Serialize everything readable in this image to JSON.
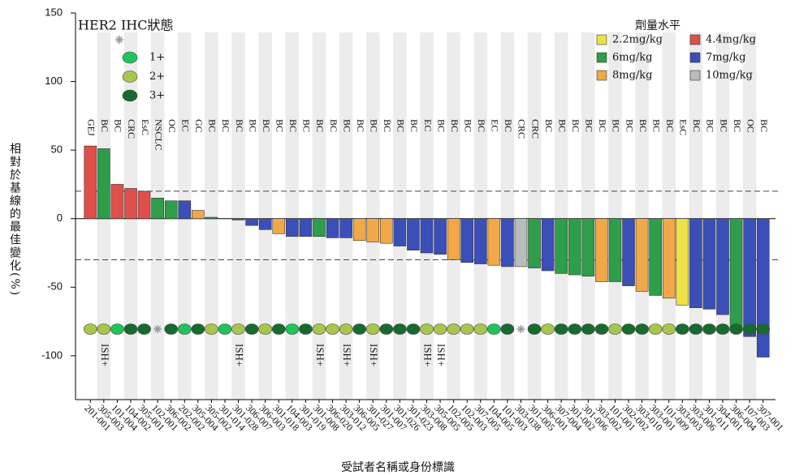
{
  "chart_data": {
    "type": "bar",
    "y_label": "相對於基線的最佳變化(%)",
    "x_label": "受試者名稱或身份標識",
    "ylim": [
      -132,
      150
    ],
    "yticks": [
      -100,
      -50,
      0,
      50,
      100,
      150
    ],
    "reference_lines": [
      20,
      -30
    ],
    "categories": [
      "201-001",
      "305-003",
      "101-004",
      "104-002",
      "305-001",
      "102-001",
      "306-002",
      "202-002",
      "305-004",
      "305-002",
      "301-014",
      "301-028",
      "306-007",
      "306-003",
      "301-018",
      "104-003",
      "301-019",
      "301-008",
      "306-020",
      "303-012",
      "306-005",
      "301-027",
      "301-007",
      "301-026",
      "301-023",
      "303-008",
      "305-005",
      "102-005",
      "102-003",
      "307-005",
      "104-005",
      "101-003",
      "303-038",
      "301-005",
      "306-001",
      "307-004",
      "301-002",
      "301-006",
      "303-002",
      "101-001",
      "302-002",
      "303-010",
      "303-001",
      "101-009",
      "303-003",
      "303-006",
      "301-011",
      "304-001",
      "306-004",
      "107-003",
      "307-001"
    ],
    "values": [
      53,
      51,
      25,
      22,
      20,
      15,
      13,
      13,
      6,
      1,
      0,
      -1,
      -5,
      -8,
      -11,
      -13,
      -13,
      -13,
      -14,
      -14,
      -16,
      -17,
      -18,
      -20,
      -23,
      -25,
      -26,
      -30,
      -32,
      -33,
      -34,
      -35,
      -35,
      -36,
      -38,
      -40,
      -41,
      -42,
      -46,
      -46,
      -49,
      -53,
      -56,
      -58,
      -63,
      -65,
      -66,
      -70,
      -80,
      -86,
      -101
    ],
    "tumor_types": [
      "GEJ",
      "BC",
      "BC",
      "CRC",
      "EsC",
      "NSCLC",
      "OC",
      "EC",
      "GC",
      "BC",
      "BC",
      "BC",
      "BC",
      "BC",
      "BC",
      "BC",
      "BC",
      "BC",
      "BC",
      "BC",
      "BC",
      "BC",
      "BC",
      "BC",
      "BC",
      "EC",
      "BC",
      "BC",
      "BC",
      "BC",
      "EC",
      "BC",
      "CRC",
      "CRC",
      "BC",
      "BC",
      "BC",
      "BC",
      "BC",
      "BC",
      "BC",
      "BC",
      "BC",
      "BC",
      "EsC",
      "BC",
      "BC",
      "BC",
      "BC",
      "OC",
      "BC"
    ],
    "dose": [
      "4.4mg/kg",
      "6mg/kg",
      "4.4mg/kg",
      "4.4mg/kg",
      "4.4mg/kg",
      "6mg/kg",
      "6mg/kg",
      "7mg/kg",
      "8mg/kg",
      "6mg/kg",
      "6mg/kg",
      "7mg/kg",
      "7mg/kg",
      "7mg/kg",
      "8mg/kg",
      "7mg/kg",
      "7mg/kg",
      "6mg/kg",
      "7mg/kg",
      "7mg/kg",
      "8mg/kg",
      "8mg/kg",
      "8mg/kg",
      "7mg/kg",
      "7mg/kg",
      "7mg/kg",
      "7mg/kg",
      "8mg/kg",
      "7mg/kg",
      "7mg/kg",
      "8mg/kg",
      "7mg/kg",
      "10mg/kg",
      "6mg/kg",
      "7mg/kg",
      "6mg/kg",
      "6mg/kg",
      "6mg/kg",
      "8mg/kg",
      "6mg/kg",
      "7mg/kg",
      "8mg/kg",
      "6mg/kg",
      "8mg/kg",
      "2.2mg/kg",
      "7mg/kg",
      "7mg/kg",
      "7mg/kg",
      "6mg/kg",
      "7mg/kg",
      "7mg/kg"
    ],
    "ihc": [
      "2+",
      "2+",
      "1+",
      "3+",
      "3+",
      null,
      "3+",
      "1+",
      "3+",
      "2+",
      "1+",
      "2+",
      "3+",
      "2+",
      "3+",
      "1+",
      "3+",
      "2+",
      "2+",
      "2+",
      "3+",
      "2+",
      "3+",
      "3+",
      "3+",
      "2+",
      "2+",
      "2+",
      "2+",
      "2+",
      "1+",
      "3+",
      null,
      "3+",
      "2+",
      "3+",
      "3+",
      "3+",
      "3+",
      "2+",
      "3+",
      "3+",
      "2+",
      "2+",
      "3+",
      "3+",
      "3+",
      "3+",
      "3+",
      "3+",
      "3+"
    ],
    "ish": [
      null,
      "ISH+",
      null,
      null,
      null,
      null,
      null,
      null,
      null,
      null,
      null,
      "ISH+",
      null,
      null,
      null,
      null,
      null,
      "ISH+",
      null,
      "ISH+",
      null,
      "ISH+",
      null,
      null,
      null,
      "ISH+",
      "ISH+",
      null,
      null,
      null,
      null,
      null,
      null,
      null,
      null,
      null,
      null,
      null,
      null,
      null,
      null,
      null,
      null,
      null,
      null,
      null,
      null,
      null,
      null,
      null,
      null
    ],
    "dose_legend": {
      "title": "劑量水平",
      "items": [
        {
          "name": "2.2mg/kg",
          "color": "#ece244"
        },
        {
          "name": "4.4mg/kg",
          "color": "#e0504a"
        },
        {
          "name": "6mg/kg",
          "color": "#2e9e4a"
        },
        {
          "name": "7mg/kg",
          "color": "#3b4fb8"
        },
        {
          "name": "8mg/kg",
          "color": "#f0a848"
        },
        {
          "name": "10mg/kg",
          "color": "#b8bcbc"
        }
      ]
    },
    "ihc_legend": {
      "title": "HER2 IHC狀態",
      "items": [
        {
          "name": "1+",
          "color": "#1fc45a"
        },
        {
          "name": "2+",
          "color": "#a9c64c"
        },
        {
          "name": "3+",
          "color": "#176b2f"
        }
      ]
    }
  }
}
